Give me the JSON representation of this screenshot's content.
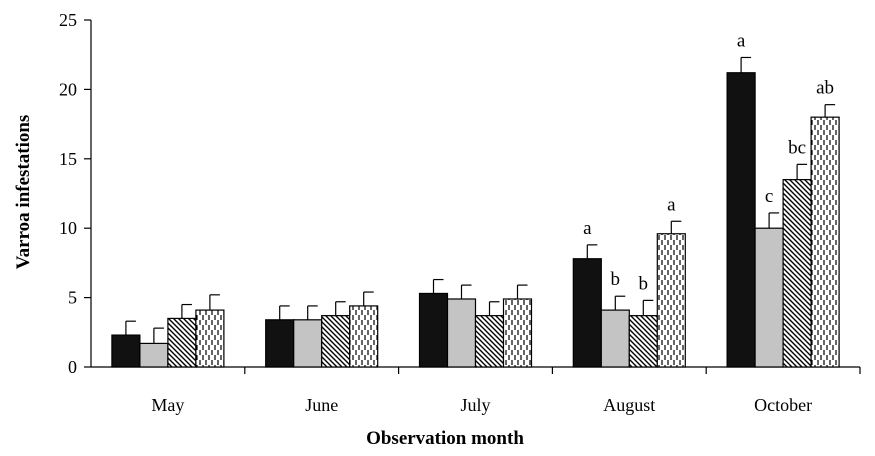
{
  "chart_data": {
    "type": "bar",
    "title": "",
    "xlabel": "Observation month",
    "ylabel": "Varroa infestations",
    "ylim": [
      0,
      25
    ],
    "yticks": [
      0,
      5,
      10,
      15,
      20,
      25
    ],
    "grid": false,
    "legend": "none",
    "categories": [
      "May",
      "June",
      "July",
      "August",
      "October"
    ],
    "series": [
      {
        "fill": "solid-black",
        "values": [
          2.3,
          3.4,
          5.3,
          7.8,
          21.2
        ],
        "errors": [
          1.0,
          1.0,
          1.0,
          1.0,
          1.1
        ],
        "labels": [
          "",
          "",
          "",
          "a",
          "a"
        ]
      },
      {
        "fill": "solid-gray",
        "values": [
          1.7,
          3.4,
          4.9,
          4.1,
          10.0
        ],
        "errors": [
          1.1,
          1.0,
          1.0,
          1.0,
          1.1
        ],
        "labels": [
          "",
          "",
          "",
          "b",
          "c"
        ]
      },
      {
        "fill": "diagonal-hatch",
        "values": [
          3.5,
          3.7,
          3.7,
          3.7,
          13.5
        ],
        "errors": [
          1.0,
          1.0,
          1.0,
          1.1,
          1.1
        ],
        "labels": [
          "",
          "",
          "",
          "b",
          "bc"
        ]
      },
      {
        "fill": "vertical-dash",
        "values": [
          4.1,
          4.4,
          4.9,
          9.6,
          18.0
        ],
        "errors": [
          1.1,
          1.0,
          1.0,
          0.9,
          0.9
        ],
        "labels": [
          "",
          "",
          "",
          "a",
          "ab"
        ]
      }
    ]
  }
}
